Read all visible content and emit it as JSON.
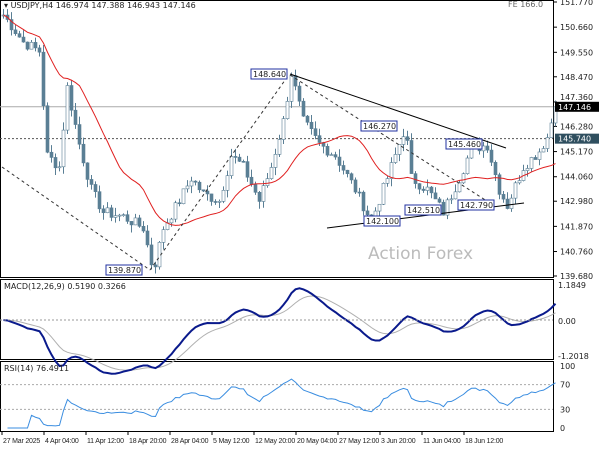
{
  "header": {
    "title": "USDJPY,H4",
    "ohlc": "146.974 147.388 146.943 147.146",
    "corner": "FE 166.0"
  },
  "watermark": "Action Forex",
  "colors": {
    "candle": "#5a7f95",
    "ma": "#e02020",
    "macd": "#0a1a8c",
    "signal": "#b0b0b0",
    "rsi": "#3a8de0",
    "label_bg": "#2f4f5f"
  },
  "chart_data": [
    {
      "type": "candlestick",
      "title": "USDJPY,H4",
      "ylim": [
        139.68,
        151.77
      ],
      "yticks": [
        "151.770",
        "150.660",
        "149.550",
        "148.470",
        "147.360",
        "146.280",
        "145.170",
        "144.060",
        "142.980",
        "141.870",
        "140.760",
        "139.680"
      ],
      "current_price": "147.146",
      "level_line": "145.740",
      "annotations": [
        "148.640",
        "146.270",
        "145.460",
        "142.790",
        "142.510",
        "142.100",
        "139.870"
      ],
      "close_path": [
        [
          0,
          151.2
        ],
        [
          3,
          150.5
        ],
        [
          5,
          150.0
        ],
        [
          9,
          149.6
        ],
        [
          11,
          145.0
        ],
        [
          14,
          144.5
        ],
        [
          16,
          148.0
        ],
        [
          19,
          145.5
        ],
        [
          22,
          143.5
        ],
        [
          25,
          142.5
        ],
        [
          30,
          142.3
        ],
        [
          35,
          141.8
        ],
        [
          37.5,
          139.87
        ],
        [
          40,
          141.8
        ],
        [
          44,
          143
        ],
        [
          47,
          144
        ],
        [
          50,
          143.3
        ],
        [
          54,
          143
        ],
        [
          57,
          145
        ],
        [
          60,
          144.5
        ],
        [
          64,
          143
        ],
        [
          67,
          144.5
        ],
        [
          70,
          146.5
        ],
        [
          72,
          148.64
        ],
        [
          75,
          146.5
        ],
        [
          79,
          145.5
        ],
        [
          83,
          145
        ],
        [
          88,
          143.5
        ],
        [
          92,
          142.1
        ],
        [
          96,
          144
        ],
        [
          99,
          145.5
        ],
        [
          100.5,
          146.27
        ],
        [
          102,
          144
        ],
        [
          106,
          143.5
        ],
        [
          110,
          142.5
        ],
        [
          114,
          144
        ],
        [
          117,
          145.3
        ],
        [
          121,
          145.46
        ],
        [
          124,
          143.5
        ],
        [
          126,
          142.79
        ],
        [
          130,
          144.5
        ],
        [
          134,
          145.2
        ],
        [
          136,
          145.8
        ],
        [
          138,
          147.15
        ]
      ],
      "xticks": [
        "27 Mar 2025",
        "4 Apr 04:00",
        "11 Apr 12:00",
        "18 Apr 20:00",
        "28 Apr 04:00",
        "5 May 12:00",
        "12 May 20:00",
        "20 May 04:00",
        "27 May 12:00",
        "3 Jun 20:00",
        "11 Jun 04:00",
        "18 Jun 12:00"
      ]
    },
    {
      "type": "line",
      "title": "MACD(12,26,9)",
      "values_label": "0.5190 0.3266",
      "yticks": [
        "1.1849",
        "0.00",
        "-1.2018"
      ],
      "ylim": [
        -1.2018,
        1.1849
      ]
    },
    {
      "type": "line",
      "title": "RSI(14)",
      "values_label": "76.4911",
      "yticks": [
        "100",
        "70",
        "30",
        "0"
      ],
      "ylim": [
        0,
        100
      ],
      "levels": [
        70,
        30
      ]
    }
  ]
}
